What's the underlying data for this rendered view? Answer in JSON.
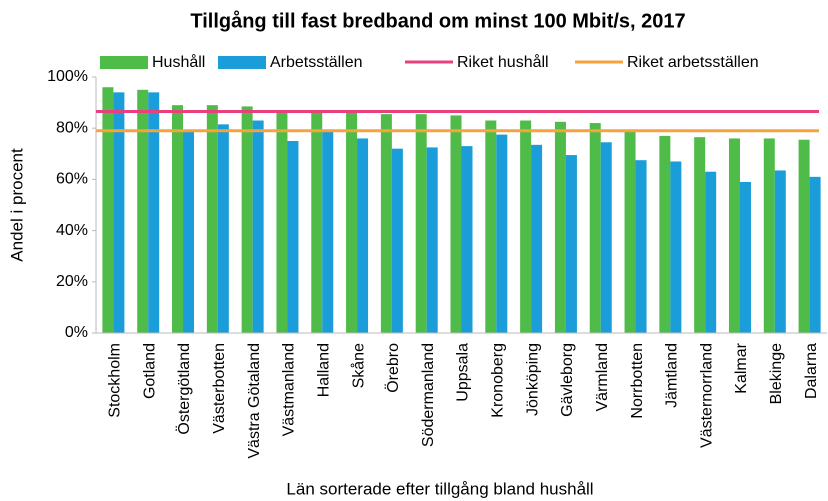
{
  "chart_data": {
    "type": "bar",
    "title": "Tillgång till fast bredband om minst 100 Mbit/s, 2017",
    "x_label": "Län sorterade efter tillgång bland hushåll",
    "y_label": "Andel i procent",
    "categories": [
      "Stockholm",
      "Gotland",
      "Östergötland",
      "Västerbotten",
      "Västra Götaland",
      "Västmanland",
      "Halland",
      "Skåne",
      "Örebro",
      "Södermanland",
      "Uppsala",
      "Kronoberg",
      "Jönköping",
      "Gävleborg",
      "Värmland",
      "Norrbotten",
      "Jämtland",
      "Västernorrland",
      "Kalmar",
      "Blekinge",
      "Dalarna"
    ],
    "series": [
      {
        "name": "Hushåll",
        "color": "#4fbb48",
        "values": [
          96,
          95,
          89,
          89,
          88.5,
          87,
          87,
          86.5,
          85.5,
          85.5,
          85,
          83,
          83,
          82.5,
          82,
          79.5,
          77,
          76.5,
          76,
          76,
          75.5
        ]
      },
      {
        "name": "Arbetsställen",
        "color": "#1a9dd8",
        "values": [
          94,
          94,
          79,
          81.5,
          83,
          75,
          79,
          76,
          72,
          72.5,
          73,
          77.5,
          73.5,
          69.5,
          74.5,
          67.5,
          67,
          63,
          59,
          63.5,
          61
        ]
      }
    ],
    "reference_lines": [
      {
        "name": "Riket hushåll",
        "color": "#e8407f",
        "value": 86.5
      },
      {
        "name": "Riket arbetsställen",
        "color": "#f6a33c",
        "value": 79
      }
    ],
    "ylim": [
      0,
      100
    ],
    "yticks": [
      {
        "value": 0,
        "label": "0%"
      },
      {
        "value": 20,
        "label": "20%"
      },
      {
        "value": 40,
        "label": "40%"
      },
      {
        "value": 60,
        "label": "60%"
      },
      {
        "value": 80,
        "label": "80%"
      },
      {
        "value": 100,
        "label": "100%"
      }
    ],
    "grid": false
  }
}
